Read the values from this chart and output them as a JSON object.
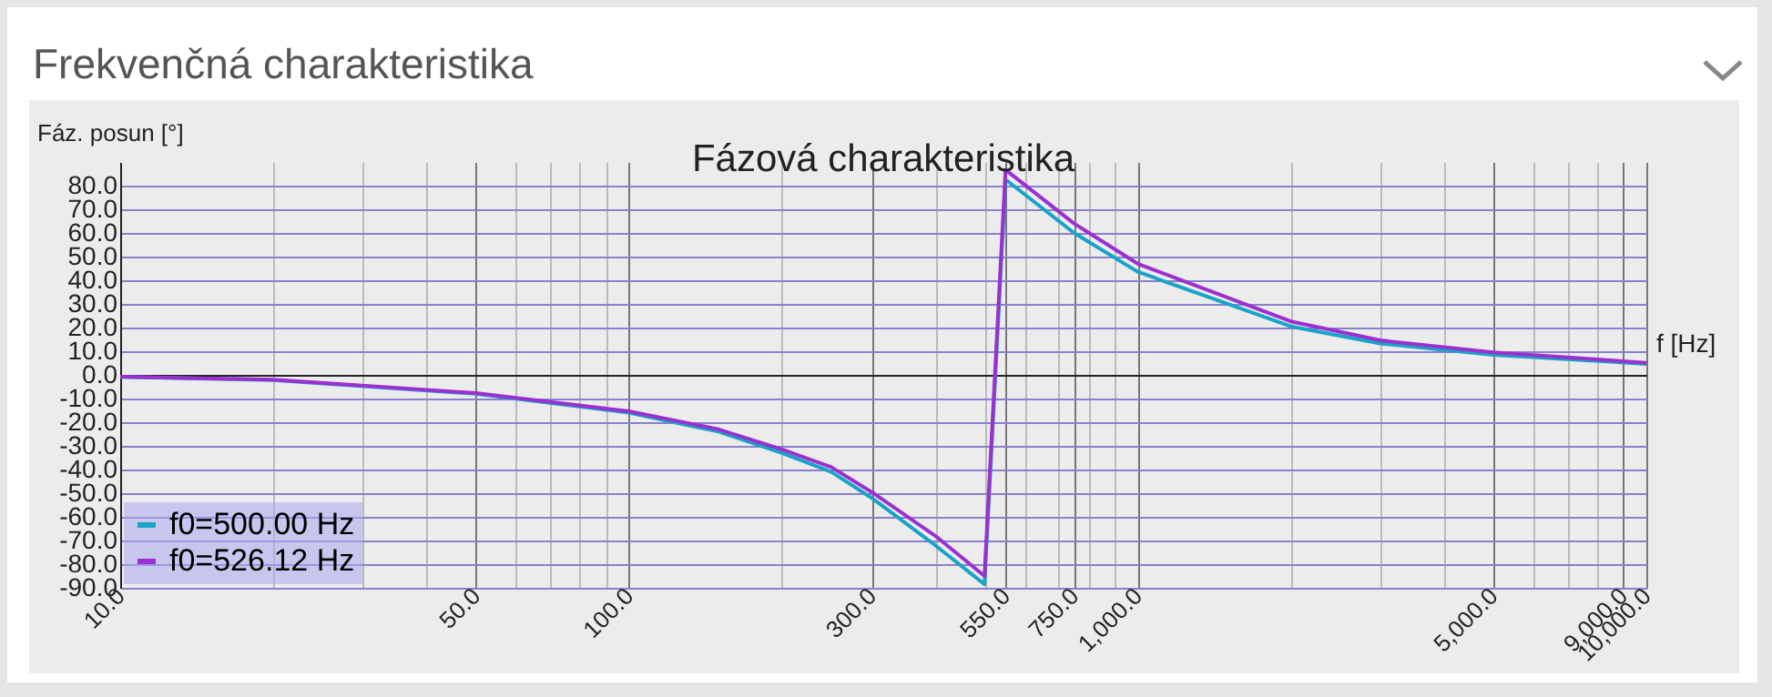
{
  "chart_data": {
    "type": "line",
    "title": "Frekvenčná charakteristika",
    "subtitle": "Fázová charakteristika",
    "xlabel": "f [Hz]",
    "ylabel": "Fáz. posun [°]",
    "x": [
      10,
      20,
      50,
      100,
      150,
      200,
      250,
      300,
      400,
      500,
      550,
      750,
      1000,
      2000,
      3000,
      5000,
      10000
    ],
    "series": [
      {
        "name": "f0=500.00 Hz",
        "color": "#1aa3c8",
        "values": [
          -0.9,
          -2.2,
          -8,
          -16,
          -24,
          -33,
          -41,
          -52,
          -72,
          -88.5,
          82.6,
          60,
          43.6,
          20.5,
          13.3,
          8.5,
          4.6
        ]
      },
      {
        "name": "f0=526.12 Hz",
        "color": "#9b30d0",
        "values": [
          -0.8,
          -2,
          -7.7,
          -15.4,
          -23,
          -31.5,
          -39,
          -49.5,
          -68,
          -85,
          86.7,
          64,
          47,
          22.6,
          14.6,
          9.5,
          5.1
        ]
      }
    ],
    "log": "x",
    "xlim": [
      10,
      10000
    ],
    "ylim": [
      -90,
      90
    ],
    "xticks": [
      {
        "value": 10,
        "label": "10.0"
      },
      {
        "value": 20,
        "label": null
      },
      {
        "value": 30,
        "label": null
      },
      {
        "value": 40,
        "label": null
      },
      {
        "value": 50,
        "label": "50.0"
      },
      {
        "value": 60,
        "label": null
      },
      {
        "value": 70,
        "label": null
      },
      {
        "value": 80,
        "label": null
      },
      {
        "value": 90,
        "label": null
      },
      {
        "value": 100,
        "label": "100.0"
      },
      {
        "value": 200,
        "label": null
      },
      {
        "value": 300,
        "label": "300.0"
      },
      {
        "value": 400,
        "label": null
      },
      {
        "value": 500,
        "label": null
      },
      {
        "value": 550,
        "label": "550.0"
      },
      {
        "value": 600,
        "label": null
      },
      {
        "value": 700,
        "label": null
      },
      {
        "value": 750,
        "label": "750.0"
      },
      {
        "value": 800,
        "label": null
      },
      {
        "value": 900,
        "label": null
      },
      {
        "value": 1000,
        "label": "1,000.0"
      },
      {
        "value": 2000,
        "label": null
      },
      {
        "value": 3000,
        "label": null
      },
      {
        "value": 4000,
        "label": null
      },
      {
        "value": 5000,
        "label": "5,000.0"
      },
      {
        "value": 6000,
        "label": null
      },
      {
        "value": 7000,
        "label": null
      },
      {
        "value": 8000,
        "label": null
      },
      {
        "value": 9000,
        "label": "9,000.0"
      },
      {
        "value": 10000,
        "label": "10,000.0"
      }
    ],
    "yticks": [
      {
        "value": -90,
        "label": "-90.0"
      },
      {
        "value": -80,
        "label": "-80.0"
      },
      {
        "value": -70,
        "label": "-70.0"
      },
      {
        "value": -60,
        "label": "-60.0"
      },
      {
        "value": -50,
        "label": "-50.0"
      },
      {
        "value": -40,
        "label": "-40.0"
      },
      {
        "value": -30,
        "label": "-30.0"
      },
      {
        "value": -20,
        "label": "-20.0"
      },
      {
        "value": -10,
        "label": "-10.0"
      },
      {
        "value": 0,
        "label": "0.0"
      },
      {
        "value": 10,
        "label": "10.0"
      },
      {
        "value": 20,
        "label": "20.0"
      },
      {
        "value": 30,
        "label": "30.0"
      },
      {
        "value": 40,
        "label": "40.0"
      },
      {
        "value": 50,
        "label": "50.0"
      },
      {
        "value": 60,
        "label": "60.0"
      },
      {
        "value": 70,
        "label": "70.0"
      },
      {
        "value": 80,
        "label": "80.0"
      }
    ],
    "grid": true,
    "legend": "bottom left",
    "marker": "none",
    "line_style": "solid"
  }
}
